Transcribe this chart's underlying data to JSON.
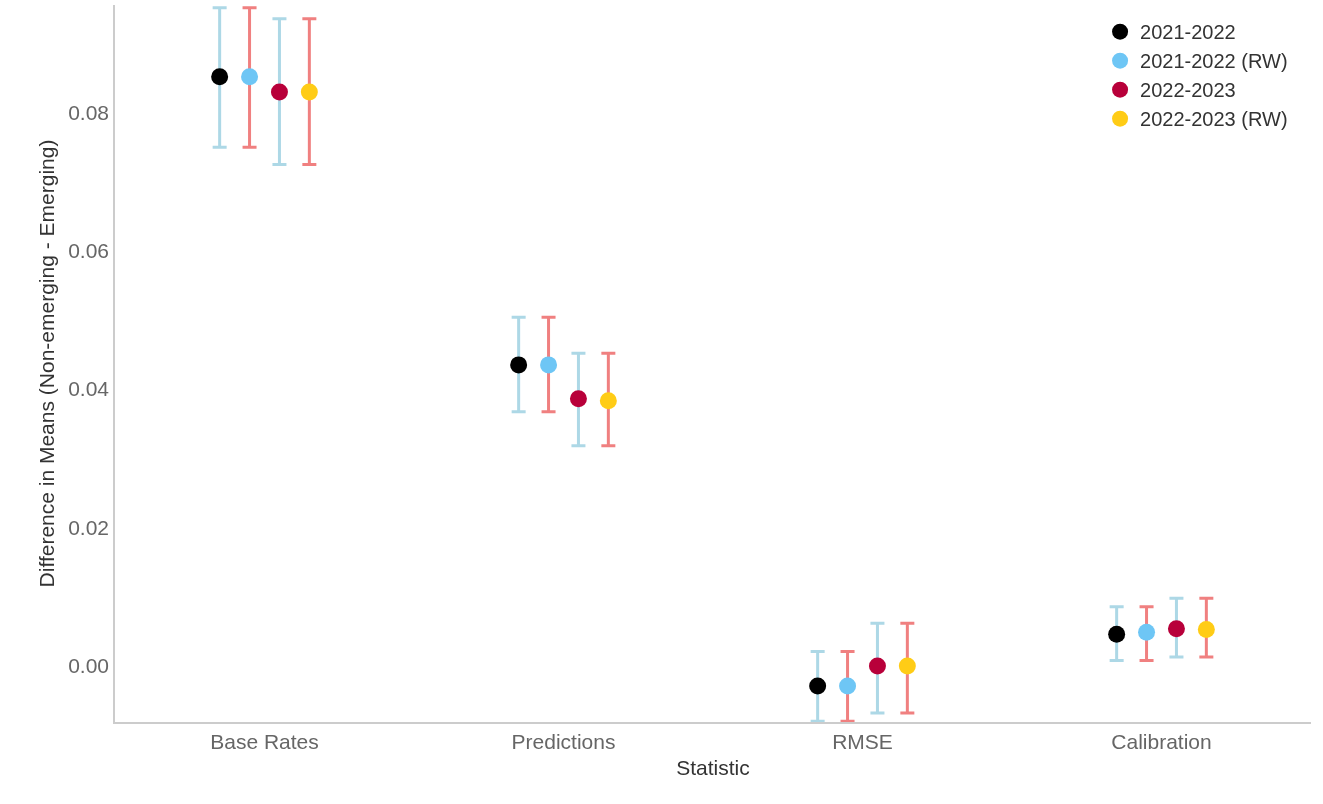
{
  "chart_data": {
    "type": "scatter",
    "xlabel": "Statistic",
    "ylabel": "Difference in Means (Non-emerging - Emerging)",
    "categories": [
      "Base Rates",
      "Predictions",
      "RMSE",
      "Calibration"
    ],
    "series": [
      {
        "name": "2021-2022",
        "color": "#000000",
        "values": [
          0.0852,
          0.0435,
          -0.003,
          0.0045
        ],
        "errors": [
          [
            0.075,
            0.0952
          ],
          [
            0.0367,
            0.0504
          ],
          [
            -0.0081,
            0.002
          ],
          [
            0.0007,
            0.0085
          ]
        ]
      },
      {
        "name": "2021-2022 (RW)",
        "color": "#6ec6f5",
        "values": [
          0.0852,
          0.0435,
          -0.003,
          0.0048
        ],
        "errors": [
          [
            0.075,
            0.0952
          ],
          [
            0.0367,
            0.0504
          ],
          [
            -0.0081,
            0.002
          ],
          [
            0.0007,
            0.0085
          ]
        ]
      },
      {
        "name": "2022-2023",
        "color": "#b8003a",
        "values": [
          0.083,
          0.0386,
          -0.0001,
          0.0053
        ],
        "errors": [
          [
            0.0725,
            0.0936
          ],
          [
            0.0318,
            0.0452
          ],
          [
            -0.0069,
            0.0061
          ],
          [
            0.0012,
            0.0097
          ]
        ]
      },
      {
        "name": "2022-2023 (RW)",
        "color": "#ffcc16",
        "values": [
          0.083,
          0.0383,
          -0.0001,
          0.0052
        ],
        "errors": [
          [
            0.0725,
            0.0936
          ],
          [
            0.0318,
            0.0452
          ],
          [
            -0.0069,
            0.0061
          ],
          [
            0.0012,
            0.0097
          ]
        ]
      }
    ],
    "ylim": [
      -0.0082,
      0.0956
    ],
    "yticks": [
      {
        "value": 0,
        "label": "0.00"
      },
      {
        "value": 0.02,
        "label": "0.02"
      },
      {
        "value": 0.04,
        "label": "0.04"
      },
      {
        "value": 0.06,
        "label": "0.06"
      },
      {
        "value": 0.08,
        "label": "0.08"
      }
    ],
    "legend": "top right",
    "marker": "circle"
  }
}
